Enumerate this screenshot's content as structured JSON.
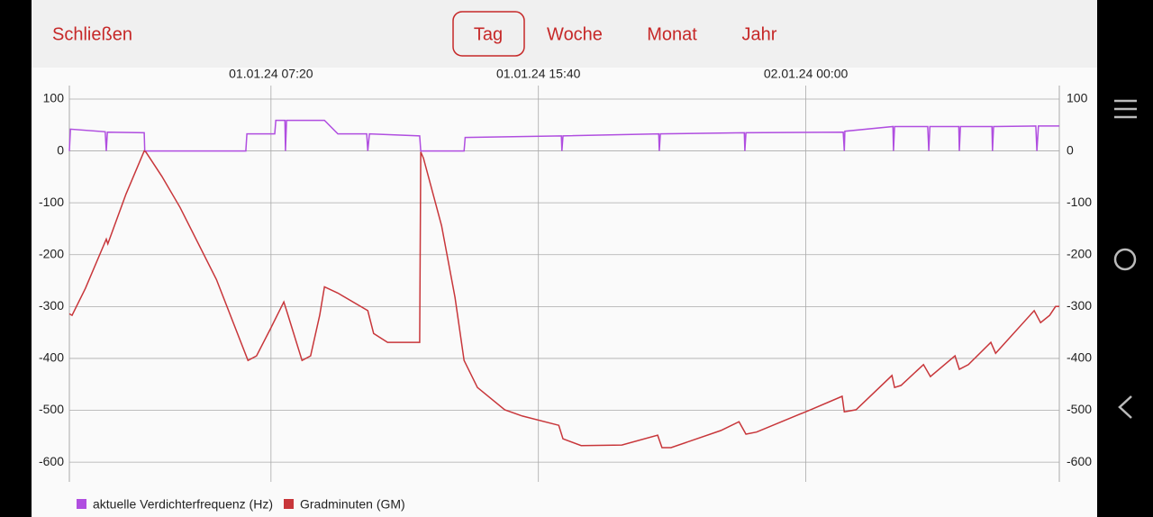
{
  "header": {
    "close": "Schließen",
    "tabs": [
      "Tag",
      "Woche",
      "Monat",
      "Jahr"
    ]
  },
  "chart_data": {
    "type": "line",
    "xlim": [
      63,
      1914
    ],
    "xticks": [
      {
        "value": 440,
        "label": "01.01.24 07:20"
      },
      {
        "value": 940,
        "label": "01.01.24 15:40"
      },
      {
        "value": 1440,
        "label": "02.01.24 00:00"
      }
    ],
    "ylim": [
      -638,
      126
    ],
    "yticks": [
      100,
      0,
      -100,
      -200,
      -300,
      -400,
      -500,
      -600
    ],
    "grid": true,
    "series": [
      {
        "name": "aktuelle Verdichterfrequenz (Hz)",
        "color": "#b04ee0",
        "x": [
          63,
          65,
          130,
          132,
          134,
          203,
          204,
          393,
          395,
          447,
          449,
          466,
          467,
          469,
          540,
          565,
          619,
          621,
          624,
          718,
          720,
          801,
          803,
          983,
          984,
          986,
          1165,
          1166,
          1168,
          1325,
          1326,
          1328,
          1510,
          1512,
          1513,
          1603,
          1604,
          1606,
          1668,
          1670,
          1672,
          1726,
          1727,
          1729,
          1788,
          1789,
          1791,
          1870,
          1872,
          1875,
          1914
        ],
        "values": [
          0,
          42,
          37,
          0,
          36,
          35,
          0,
          0,
          33,
          33,
          59,
          59,
          0,
          59,
          59,
          33,
          33,
          0,
          33,
          29,
          0,
          0,
          26,
          29,
          0,
          29,
          33,
          0,
          33,
          35,
          0,
          35,
          36,
          0,
          38,
          47,
          0,
          47,
          47,
          0,
          47,
          47,
          0,
          47,
          47,
          0,
          47,
          48,
          0,
          48,
          48
        ]
      },
      {
        "name": "Gradminuten (GM)",
        "color": "#c8363a",
        "x": [
          63,
          68,
          93,
          132,
          135,
          169,
          203,
          206,
          236,
          270,
          338,
          397,
          413,
          439,
          464,
          472,
          498,
          514,
          531,
          540,
          565,
          621,
          632,
          658,
          718,
          720,
          725,
          759,
          784,
          801,
          826,
          877,
          910,
          978,
          986,
          1020,
          1096,
          1163,
          1171,
          1188,
          1281,
          1315,
          1328,
          1348,
          1449,
          1508,
          1512,
          1534,
          1601,
          1606,
          1618,
          1660,
          1673,
          1719,
          1727,
          1744,
          1786,
          1795,
          1867,
          1879,
          1896,
          1907,
          1914
        ],
        "values": [
          -314,
          -317,
          -265,
          -170,
          -179,
          -83,
          0,
          -2,
          -49,
          -109,
          -248,
          -404,
          -395,
          -343,
          -291,
          -317,
          -404,
          -395,
          -317,
          -262,
          -274,
          -308,
          -352,
          -369,
          -369,
          -2,
          -14,
          -144,
          -282,
          -404,
          -456,
          -499,
          -511,
          -529,
          -555,
          -568,
          -567,
          -548,
          -572,
          -572,
          -539,
          -522,
          -546,
          -542,
          -499,
          -473,
          -503,
          -499,
          -433,
          -456,
          -452,
          -412,
          -435,
          -395,
          -421,
          -412,
          -369,
          -390,
          -308,
          -331,
          -317,
          -300,
          -300
        ]
      }
    ]
  }
}
